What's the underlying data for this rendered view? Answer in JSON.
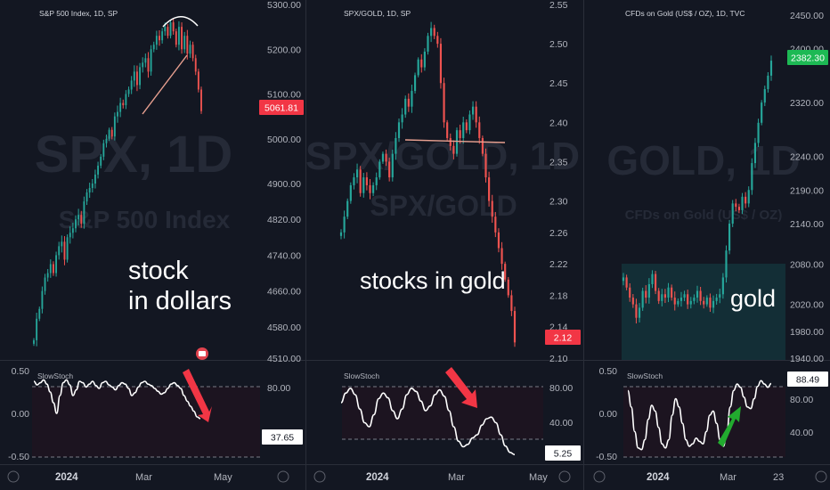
{
  "colors": {
    "background": "#131722",
    "up": "#26a69a",
    "down": "#ef5350",
    "stoch_line": "#ffffff",
    "trendline": "#e8a090",
    "arrow_red": "#f23645",
    "arrow_green": "#22ab2f",
    "price_label_red": "#f23645",
    "price_label_green": "#1db954"
  },
  "chart_data": [
    {
      "type": "candlestick",
      "title": "S&P 500 Index, 1D, SP",
      "watermark_big": "SPX, 1D",
      "watermark_small": "S&P 500 Index",
      "annotation": [
        "stock",
        "in dollars"
      ],
      "price_axis_ticks": [
        "5300.00",
        "5200.00",
        "5100.00",
        "5000.00",
        "4900.00",
        "4820.00",
        "4740.00",
        "4660.00",
        "4580.00",
        "4510.00"
      ],
      "ylim": [
        4510,
        5300
      ],
      "last_price_label": "5061.81",
      "x_ticks": [
        "2024",
        "Mar",
        "May"
      ],
      "closes": [
        4550,
        4598,
        4620,
        4660,
        4690,
        4700,
        4720,
        4700,
        4740,
        4760,
        4770,
        4730,
        4780,
        4790,
        4800,
        4820,
        4830,
        4810,
        4860,
        4880,
        4890,
        4900,
        4920,
        4940,
        4960,
        4990,
        5000,
        5020,
        5005,
        5050,
        5060,
        5080,
        5075,
        5100,
        5110,
        5130,
        5150,
        5120,
        5160,
        5170,
        5180,
        5150,
        5200,
        5210,
        5230,
        5220,
        5240,
        5250,
        5230,
        5260,
        5240,
        5210,
        5250,
        5200,
        5230,
        5190,
        5210,
        5180,
        5150,
        5110,
        5061.81
      ],
      "indicator": {
        "name": "SlowStoch",
        "left_ticks": [
          "0.50",
          "0.00",
          "-0.50"
        ],
        "right_ticks": [
          "80.00"
        ],
        "value_label": "37.65",
        "values": [
          90,
          85,
          88,
          92,
          86,
          75,
          60,
          45,
          70,
          88,
          92,
          85,
          70,
          78,
          90,
          88,
          82,
          86,
          90,
          84,
          80,
          88,
          90,
          85,
          82,
          78,
          84,
          88,
          86,
          80,
          70,
          74,
          82,
          88,
          90,
          86,
          84,
          80,
          76,
          72,
          74,
          80,
          86,
          88,
          84,
          80,
          70,
          62,
          55,
          48,
          40,
          37.65
        ]
      }
    },
    {
      "type": "candlestick",
      "title": "SPX/GOLD, 1D, SP",
      "watermark_big": "SPX/GOLD, 1D",
      "watermark_small": "SPX/GOLD",
      "annotation": [
        "stocks in gold"
      ],
      "price_axis_ticks": [
        "2.55",
        "2.50",
        "2.45",
        "2.40",
        "2.35",
        "2.30",
        "2.26",
        "2.22",
        "2.18",
        "2.14",
        "2.10"
      ],
      "ylim": [
        2.1,
        2.55
      ],
      "last_price_label": "2.12",
      "x_ticks": [
        "2024",
        "Mar",
        "May"
      ],
      "closes": [
        2.26,
        2.28,
        2.3,
        2.32,
        2.33,
        2.34,
        2.31,
        2.33,
        2.32,
        2.31,
        2.32,
        2.33,
        2.35,
        2.36,
        2.35,
        2.33,
        2.36,
        2.38,
        2.4,
        2.41,
        2.43,
        2.42,
        2.44,
        2.46,
        2.48,
        2.47,
        2.49,
        2.51,
        2.52,
        2.51,
        2.5,
        2.45,
        2.4,
        2.38,
        2.37,
        2.36,
        2.39,
        2.38,
        2.4,
        2.39,
        2.41,
        2.42,
        2.4,
        2.38,
        2.36,
        2.33,
        2.3,
        2.28,
        2.26,
        2.24,
        2.22,
        2.2,
        2.18,
        2.16,
        2.12
      ],
      "indicator": {
        "name": "SlowStoch",
        "right_ticks": [
          "80.00",
          "40.00"
        ],
        "value_label": "5.25",
        "values": [
          70,
          82,
          88,
          80,
          62,
          45,
          40,
          55,
          75,
          82,
          76,
          60,
          50,
          62,
          80,
          88,
          84,
          72,
          60,
          66,
          80,
          86,
          78,
          60,
          40,
          22,
          15,
          18,
          26,
          30,
          42,
          50,
          52,
          45,
          30,
          16,
          8,
          5.25
        ]
      }
    },
    {
      "type": "candlestick",
      "title": "CFDs on Gold (US$ / OZ), 1D, TVC",
      "watermark_big": "GOLD, 1D",
      "watermark_small": "CFDs on Gold (US$ / OZ)",
      "annotation": [
        "gold"
      ],
      "price_axis_ticks": [
        "2450.00",
        "2400.00",
        "2320.00",
        "2240.00",
        "2190.00",
        "2140.00",
        "2080.00",
        "2020.00",
        "1980.00",
        "1940.00"
      ],
      "ylim": [
        1940,
        2450
      ],
      "last_price_label": "2382.30",
      "x_ticks": [
        "2024",
        "Mar",
        "23"
      ],
      "closes": [
        2060,
        2045,
        2030,
        2020,
        2000,
        2015,
        2040,
        2030,
        2050,
        2065,
        2040,
        2025,
        2035,
        2030,
        2045,
        2030,
        2020,
        2025,
        2030,
        2035,
        2020,
        2025,
        2030,
        2040,
        2025,
        2020,
        2030,
        2015,
        2025,
        2030,
        2035,
        2060,
        2100,
        2140,
        2170,
        2165,
        2160,
        2180,
        2170,
        2190,
        2230,
        2260,
        2290,
        2320,
        2340,
        2360,
        2382.3
      ],
      "indicator": {
        "name": "SlowStoch",
        "left_ticks": [
          "0.50",
          "0.00",
          "-0.50"
        ],
        "right_ticks": [
          "80.00",
          "40.00"
        ],
        "value_label": "88.49",
        "values": [
          80,
          60,
          30,
          10,
          8,
          20,
          45,
          62,
          55,
          35,
          15,
          10,
          20,
          50,
          70,
          60,
          40,
          20,
          12,
          15,
          22,
          18,
          15,
          30,
          50,
          55,
          40,
          20,
          12,
          30,
          60,
          80,
          88,
          84,
          72,
          60,
          58,
          70,
          85,
          92,
          88,
          84,
          88.49
        ]
      }
    }
  ]
}
